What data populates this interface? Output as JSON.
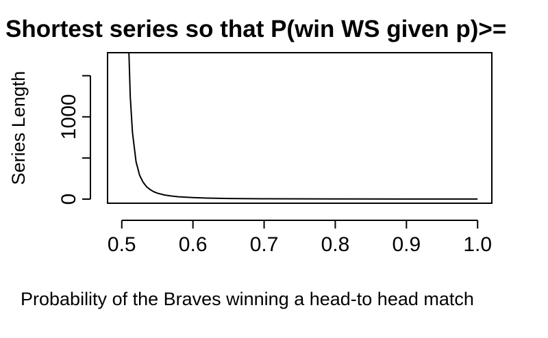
{
  "chart_data": {
    "type": "line",
    "title": "Shortest series so that P(win WS given p)>=",
    "xlabel": "Probability of the Braves winning a head-to head match",
    "ylabel": "Series Length",
    "xlim": [
      0.48,
      1.02
    ],
    "ylim": [
      -50,
      1780
    ],
    "x_ticks": [
      0.5,
      0.6,
      0.7,
      0.8,
      0.9,
      1.0
    ],
    "x_tick_labels": [
      "0.5",
      "0.6",
      "0.7",
      "0.8",
      "0.9",
      "1.0"
    ],
    "y_ticks": [
      0,
      500,
      1000,
      1500
    ],
    "y_tick_labels": [
      "0",
      "",
      "1000",
      ""
    ],
    "series": [
      {
        "color": "#000000",
        "points": [
          [
            0.51,
            1780
          ],
          [
            0.512,
            1240
          ],
          [
            0.515,
            810
          ],
          [
            0.52,
            455
          ],
          [
            0.525,
            290
          ],
          [
            0.53,
            205
          ],
          [
            0.535,
            150
          ],
          [
            0.54,
            115
          ],
          [
            0.545,
            90
          ],
          [
            0.55,
            72
          ],
          [
            0.56,
            50
          ],
          [
            0.57,
            37
          ],
          [
            0.58,
            28
          ],
          [
            0.6,
            18
          ],
          [
            0.62,
            12
          ],
          [
            0.65,
            7
          ],
          [
            0.7,
            4
          ],
          [
            0.75,
            3
          ],
          [
            0.8,
            2
          ],
          [
            0.9,
            1
          ],
          [
            1.0,
            1
          ]
        ]
      }
    ],
    "grid": false,
    "legend": "none"
  }
}
